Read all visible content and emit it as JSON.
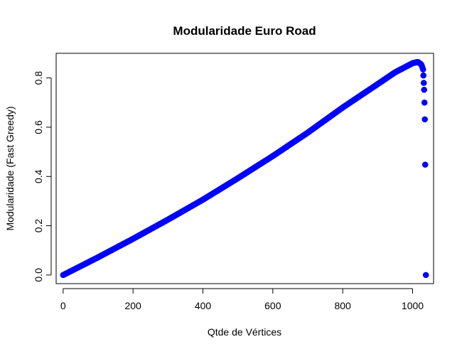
{
  "chart_data": {
    "type": "scatter",
    "title": "Modularidade Euro Road",
    "xlabel": "Qtde de Vértices",
    "ylabel": "Modularidade (Fast Greedy)",
    "xlim": [
      -20,
      1060
    ],
    "ylim": [
      -0.035,
      0.9
    ],
    "xticks": [
      0,
      200,
      400,
      600,
      800,
      1000
    ],
    "xtick_labels": [
      "0",
      "200",
      "400",
      "600",
      "800",
      "1000"
    ],
    "yticks": [
      0.0,
      0.2,
      0.4,
      0.6,
      0.8
    ],
    "ytick_labels": [
      "0.0",
      "0.2",
      "0.4",
      "0.6",
      "0.8"
    ],
    "grid": false,
    "legend": "none",
    "marker_color": "#0000ff",
    "series": [
      {
        "curve_points": [
          [
            0,
            0.0
          ],
          [
            100,
            0.072
          ],
          [
            200,
            0.147
          ],
          [
            300,
            0.225
          ],
          [
            400,
            0.306
          ],
          [
            500,
            0.393
          ],
          [
            600,
            0.483
          ],
          [
            700,
            0.578
          ],
          [
            800,
            0.68
          ],
          [
            900,
            0.775
          ],
          [
            950,
            0.823
          ],
          [
            1000,
            0.86
          ],
          [
            1015,
            0.865
          ],
          [
            1025,
            0.855
          ],
          [
            1030,
            0.835
          ]
        ],
        "tail_points": [
          [
            1031,
            0.81
          ],
          [
            1032,
            0.78
          ],
          [
            1033,
            0.752
          ],
          [
            1034,
            0.7
          ],
          [
            1035,
            0.632
          ],
          [
            1036,
            0.448
          ],
          [
            1038,
            0.0
          ]
        ]
      }
    ]
  }
}
